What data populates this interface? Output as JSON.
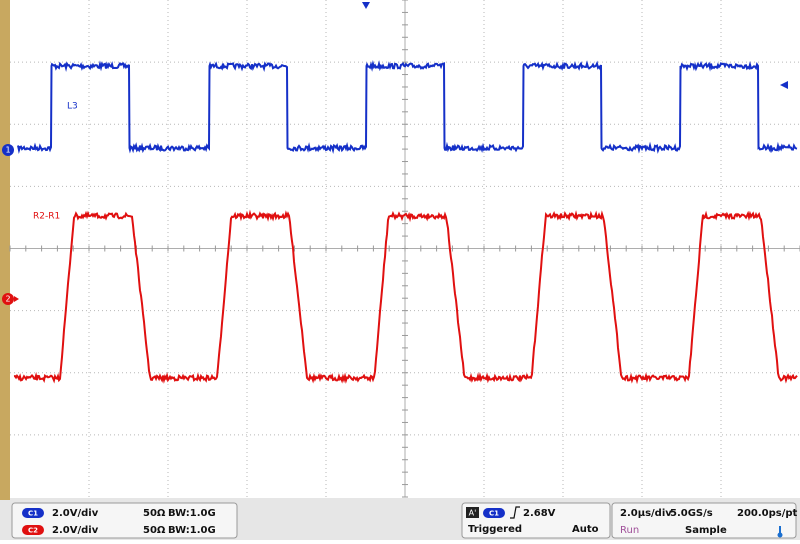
{
  "graticule": {
    "traces": [
      {
        "label": "L3",
        "marker": "1"
      },
      {
        "label": "R2-R1",
        "marker": "2"
      }
    ]
  },
  "status_bar": {
    "channels": [
      {
        "badge": "C1",
        "scale": "2.0V/div",
        "impedance": "50Ω",
        "bandwidth": "BW:1.0G"
      },
      {
        "badge": "C2",
        "scale": "2.0V/div",
        "impedance": "50Ω",
        "bandwidth": "BW:1.0G"
      }
    ],
    "trigger": {
      "mode_badge": "A'",
      "source": "C1",
      "level": "2.68V",
      "state": "Triggered",
      "sweep": "Auto"
    },
    "acquisition": {
      "timebase": "2.0µs/div",
      "sample_rate": "5.0GS/s",
      "resolution": "200.0ps/pt",
      "run_state": "Run",
      "mode": "Sample"
    }
  }
}
